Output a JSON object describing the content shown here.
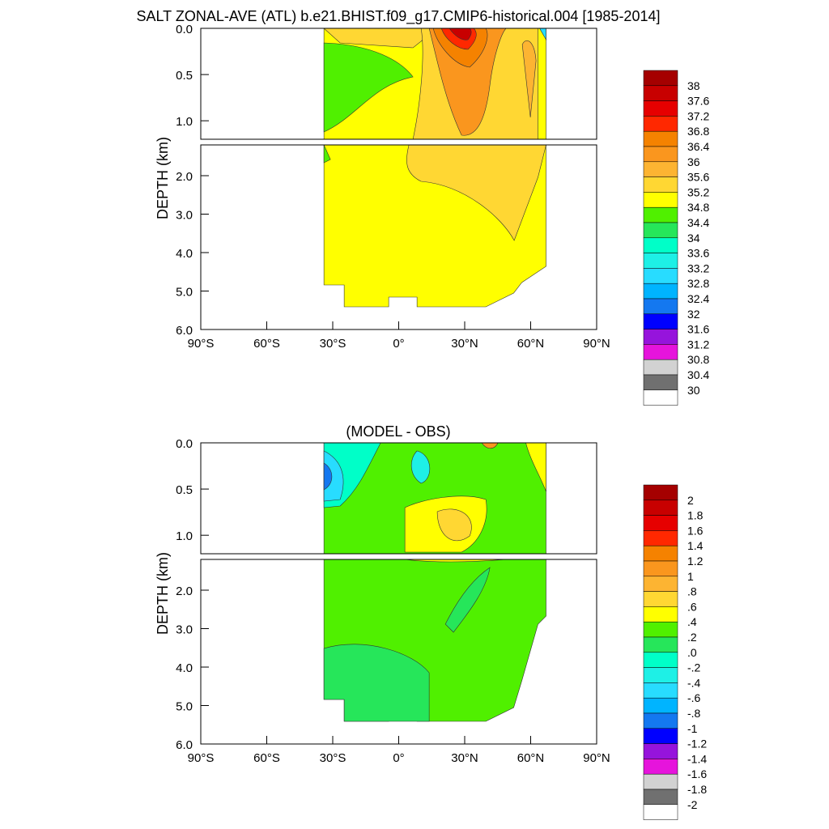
{
  "chart_data": [
    {
      "type": "heatmap",
      "title": "SALT ZONAL-AVE (ATL) b.e21.BHIST.f09_g17.CMIP6-historical.004 [1985-2014]",
      "ylabel": "DEPTH (km)",
      "x_ticks": [
        "90°S",
        "60°S",
        "30°S",
        "0°",
        "30°N",
        "60°N",
        "90°N"
      ],
      "upper_y_ticks": [
        "0.0",
        "0.5",
        "1.0"
      ],
      "lower_y_ticks": [
        "2.0",
        "3.0",
        "4.0",
        "5.0",
        "6.0"
      ],
      "xlim": [
        -90,
        90
      ],
      "ylim_upper_km": [
        0,
        1.2
      ],
      "ylim_lower_km": [
        1.2,
        6.0
      ],
      "colorbar_labels": [
        "38",
        "37.6",
        "37.2",
        "36.8",
        "36.4",
        "36",
        "35.6",
        "35.2",
        "34.8",
        "34.4",
        "34",
        "33.6",
        "33.2",
        "32.8",
        "32.4",
        "32",
        "31.6",
        "31.2",
        "30.8",
        "30.4",
        "30"
      ],
      "colors": [
        "#a50000",
        "#c80000",
        "#e60000",
        "#ff2800",
        "#f58200",
        "#fa961e",
        "#fdb432",
        "#ffd733",
        "#ffff00",
        "#50f000",
        "#26e65a",
        "#00ffc8",
        "#1ef0e6",
        "#28dcff",
        "#00b4ff",
        "#1478f0",
        "#0000ff",
        "#9614dc",
        "#e614dc",
        "#d2d2d2",
        "#707070",
        "#ffffff"
      ]
    },
    {
      "type": "heatmap",
      "title": "(MODEL - OBS)",
      "ylabel": "DEPTH (km)",
      "x_ticks": [
        "90°S",
        "60°S",
        "30°S",
        "0°",
        "30°N",
        "60°N",
        "90°N"
      ],
      "upper_y_ticks": [
        "0.0",
        "0.5",
        "1.0"
      ],
      "lower_y_ticks": [
        "2.0",
        "3.0",
        "4.0",
        "5.0",
        "6.0"
      ],
      "xlim": [
        -90,
        90
      ],
      "colorbar_labels": [
        "2",
        "1.8",
        "1.6",
        "1.4",
        "1.2",
        "1",
        ".8",
        ".6",
        ".4",
        ".2",
        ".0",
        "-.2",
        "-.4",
        "-.6",
        "-.8",
        "-1",
        "-1.2",
        "-1.4",
        "-1.6",
        "-1.8",
        "-2"
      ]
    }
  ]
}
